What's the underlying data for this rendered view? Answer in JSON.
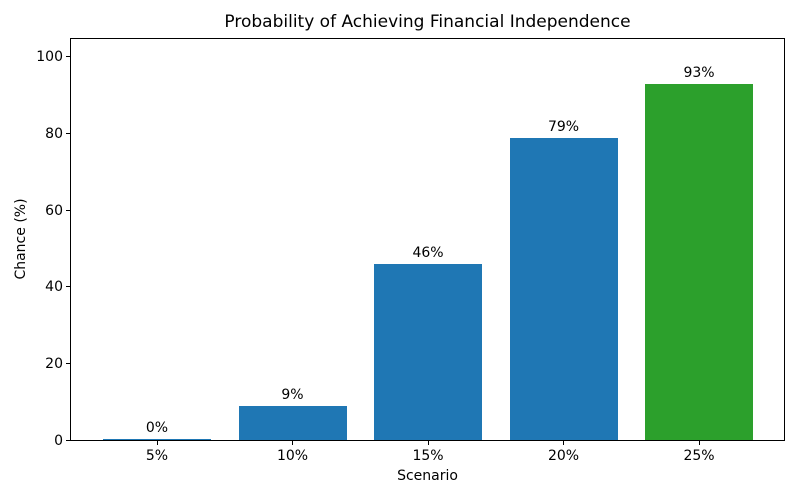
{
  "figure": {
    "background_color": "#ffffff",
    "text_color": "#000000",
    "spine_color": "#000000"
  },
  "chart_data": {
    "type": "bar",
    "title": "Probability of Achieving Financial Independence",
    "xlabel": "Scenario",
    "ylabel": "Chance (%)",
    "categories": [
      "5%",
      "10%",
      "15%",
      "20%",
      "25%"
    ],
    "values": [
      0,
      9,
      46,
      79,
      93
    ],
    "bar_labels": [
      "0%",
      "9%",
      "46%",
      "79%",
      "93%"
    ],
    "bar_colors": [
      "#1f77b4",
      "#1f77b4",
      "#1f77b4",
      "#1f77b4",
      "#2ca02c"
    ],
    "yticks": [
      0,
      20,
      40,
      60,
      80,
      100
    ],
    "ylim": [
      0,
      105
    ],
    "grid": false,
    "legend": null
  }
}
